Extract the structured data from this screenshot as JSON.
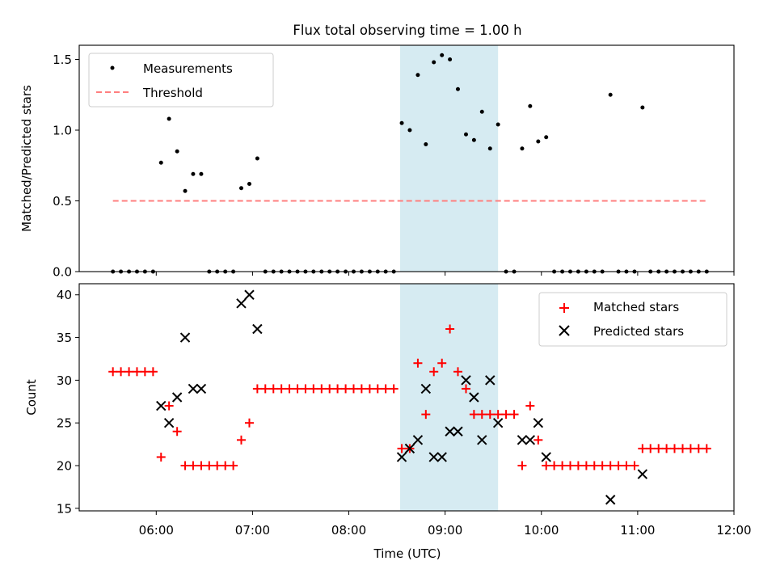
{
  "title": "Flux total observing time = 1.00 h",
  "xlabel": "Time (UTC)",
  "colors": {
    "threshold": "#ff7f7f",
    "highlight": "#add8e6",
    "matched": "#ff0000",
    "predicted": "#000000",
    "measurement": "#000000"
  },
  "chart_data": [
    {
      "type": "scatter",
      "ylabel": "Matched/Predicted stars",
      "ylim": [
        0,
        1.6
      ],
      "yticks": [
        "0.0",
        "0.5",
        "1.0",
        "1.5"
      ],
      "grid": false,
      "legend_position": "upper-left",
      "legend": [
        "Measurements",
        "Threshold"
      ],
      "x_unit": "hours UTC",
      "highlight_span": [
        8.533,
        9.55
      ],
      "threshold": {
        "name": "Threshold",
        "value": 0.5,
        "x": [
          5.55,
          11.72
        ]
      },
      "series": [
        {
          "name": "Measurements",
          "x": [
            5.55,
            5.633,
            5.717,
            5.8,
            5.883,
            5.967,
            6.05,
            6.133,
            6.217,
            6.3,
            6.383,
            6.467,
            6.55,
            6.633,
            6.717,
            6.8,
            6.883,
            6.967,
            7.05,
            7.133,
            7.217,
            7.3,
            7.383,
            7.467,
            7.55,
            7.633,
            7.717,
            7.8,
            7.883,
            7.967,
            8.05,
            8.133,
            8.217,
            8.3,
            8.383,
            8.467,
            8.55,
            8.633,
            8.717,
            8.8,
            8.883,
            8.967,
            9.05,
            9.133,
            9.217,
            9.3,
            9.383,
            9.467,
            9.55,
            9.633,
            9.717,
            9.8,
            9.883,
            9.967,
            10.05,
            10.133,
            10.217,
            10.3,
            10.383,
            10.467,
            10.55,
            10.633,
            10.717,
            10.8,
            10.883,
            10.967,
            11.05,
            11.133,
            11.217,
            11.3,
            11.383,
            11.467,
            11.55,
            11.633,
            11.717
          ],
          "y": [
            0,
            0,
            0,
            0,
            0,
            0,
            0.77,
            1.08,
            0.85,
            0.57,
            0.69,
            0.69,
            0,
            0,
            0,
            0,
            0.59,
            0.62,
            0.8,
            0,
            0,
            0,
            0,
            0,
            0,
            0,
            0,
            0,
            0,
            0,
            0,
            0,
            0,
            0,
            0,
            0,
            1.05,
            1.0,
            1.39,
            0.9,
            1.48,
            1.53,
            1.5,
            1.29,
            0.97,
            0.93,
            1.13,
            0.87,
            1.04,
            0,
            0,
            0.87,
            1.17,
            0.92,
            0.95,
            0,
            0,
            0,
            0,
            0,
            0,
            0,
            1.25,
            0,
            0,
            0,
            1.16,
            0,
            0,
            0,
            0,
            0,
            0,
            0,
            0
          ]
        }
      ]
    },
    {
      "type": "scatter",
      "ylabel": "Count",
      "ylim": [
        14.7,
        41.3
      ],
      "yticks": [
        "15",
        "20",
        "25",
        "30",
        "35",
        "40"
      ],
      "xlim": [
        5.2,
        12.0
      ],
      "xticks": [
        "06:00",
        "07:00",
        "08:00",
        "09:00",
        "10:00",
        "11:00",
        "12:00"
      ],
      "grid": false,
      "legend_position": "upper-right",
      "legend": [
        "Matched stars",
        "Predicted stars"
      ],
      "highlight_span": [
        8.533,
        9.55
      ],
      "series": [
        {
          "name": "Matched stars",
          "x": [
            5.55,
            5.633,
            5.717,
            5.8,
            5.883,
            5.967,
            6.05,
            6.133,
            6.217,
            6.3,
            6.383,
            6.467,
            6.55,
            6.633,
            6.717,
            6.8,
            6.883,
            6.967,
            7.05,
            7.133,
            7.217,
            7.3,
            7.383,
            7.467,
            7.55,
            7.633,
            7.717,
            7.8,
            7.883,
            7.967,
            8.05,
            8.133,
            8.217,
            8.3,
            8.383,
            8.467,
            8.55,
            8.633,
            8.717,
            8.8,
            8.883,
            8.967,
            9.05,
            9.133,
            9.217,
            9.3,
            9.383,
            9.467,
            9.55,
            9.633,
            9.717,
            9.8,
            9.883,
            9.967,
            10.05,
            10.133,
            10.217,
            10.3,
            10.383,
            10.467,
            10.55,
            10.633,
            10.717,
            10.8,
            10.883,
            10.967,
            11.05,
            11.133,
            11.217,
            11.3,
            11.383,
            11.467,
            11.55,
            11.633,
            11.717
          ],
          "y": [
            31,
            31,
            31,
            31,
            31,
            31,
            21,
            27,
            24,
            20,
            20,
            20,
            20,
            20,
            20,
            20,
            23,
            25,
            29,
            29,
            29,
            29,
            29,
            29,
            29,
            29,
            29,
            29,
            29,
            29,
            29,
            29,
            29,
            29,
            29,
            29,
            22,
            22,
            32,
            26,
            31,
            32,
            36,
            31,
            29,
            26,
            26,
            26,
            26,
            26,
            26,
            20,
            27,
            23,
            20,
            20,
            20,
            20,
            20,
            20,
            20,
            20,
            20,
            20,
            20,
            20,
            22,
            22,
            22,
            22,
            22,
            22,
            22,
            22,
            22
          ]
        },
        {
          "name": "Predicted stars",
          "x": [
            6.05,
            6.133,
            6.217,
            6.3,
            6.383,
            6.467,
            6.883,
            6.967,
            7.05,
            8.55,
            8.633,
            8.717,
            8.8,
            8.883,
            8.967,
            9.05,
            9.133,
            9.217,
            9.3,
            9.383,
            9.467,
            9.55,
            9.8,
            9.883,
            9.967,
            10.05,
            10.717,
            11.05
          ],
          "y": [
            27,
            25,
            28,
            35,
            29,
            29,
            39,
            40,
            36,
            21,
            22,
            23,
            29,
            21,
            21,
            24,
            24,
            30,
            28,
            23,
            30,
            25,
            23,
            23,
            25,
            21,
            16,
            19
          ]
        }
      ]
    }
  ]
}
